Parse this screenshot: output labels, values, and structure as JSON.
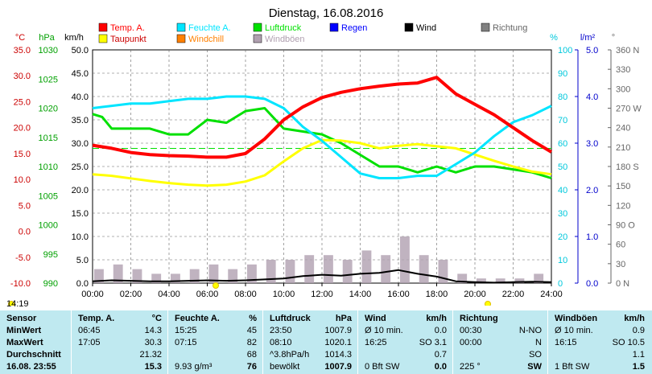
{
  "title": "Dienstag, 16.08.2016",
  "current_time": "14:19",
  "colors": {
    "temp": "#ff0000",
    "feuchte": "#00e5ff",
    "luftdruck": "#00e000",
    "taupunkt": "#ffff00",
    "windchill": "#ff8000",
    "windboeen": "#b0a0b0",
    "regen": "#0000ff",
    "wind": "#000000",
    "richtung": "#808080",
    "stats_bg": "#bfe9f0"
  },
  "legend": [
    {
      "key": "temp",
      "label": "Temp. A."
    },
    {
      "key": "feuchte",
      "label": "Feuchte A."
    },
    {
      "key": "luftdruck",
      "label": "Luftdruck"
    },
    {
      "key": "regen",
      "label": "Regen"
    },
    {
      "key": "wind",
      "label": "Wind"
    },
    {
      "key": "richtung",
      "label": "Richtung"
    },
    {
      "key": "taupunkt",
      "label": "Taupunkt"
    },
    {
      "key": "windchill",
      "label": "Windchill"
    },
    {
      "key": "windboeen",
      "label": "Windböen"
    }
  ],
  "chart_data": {
    "type": "line",
    "title": "Dienstag, 16.08.2016",
    "x_ticks": [
      "00:00",
      "02:00",
      "04:00",
      "06:00",
      "08:00",
      "10:00",
      "12:00",
      "14:00",
      "16:00",
      "18:00",
      "20:00",
      "22:00",
      "24:00"
    ],
    "axes": {
      "temp": {
        "unit": "°C",
        "ticks": [
          "35.0",
          "30.0",
          "25.0",
          "20.0",
          "15.0",
          "10.0",
          "5.0",
          "0.0",
          "-5.0",
          "-10.0"
        ],
        "range": [
          -10,
          35
        ]
      },
      "pressure": {
        "unit": "hPa",
        "ticks": [
          "1030",
          "1025",
          "1020",
          "1015",
          "1010",
          "1005",
          "1000",
          "995",
          "990"
        ],
        "range": [
          990,
          1030
        ]
      },
      "wind": {
        "unit": "km/h",
        "ticks": [
          "50.0",
          "45.0",
          "40.0",
          "35.0",
          "30.0",
          "25.0",
          "20.0",
          "15.0",
          "10.0",
          "5.0",
          "0.0"
        ],
        "range": [
          0,
          50
        ]
      },
      "humidity": {
        "unit": "%",
        "ticks": [
          "100",
          "90",
          "80",
          "70",
          "60",
          "50",
          "40",
          "30",
          "20",
          "10",
          "0"
        ],
        "range": [
          0,
          100
        ]
      },
      "rain": {
        "unit": "l/m²",
        "ticks": [
          "5.0",
          "4.0",
          "3.0",
          "2.0",
          "1.0",
          "0.0"
        ],
        "range": [
          0,
          5
        ]
      },
      "direction": {
        "unit": "°",
        "ticks": [
          "360 N",
          "330",
          "300",
          "270 W",
          "240",
          "210",
          "180 S",
          "150",
          "120",
          "90 O",
          "60",
          "30",
          "0 N"
        ],
        "range": [
          0,
          360
        ]
      }
    },
    "series": [
      {
        "name": "Temp. A.",
        "key": "temp",
        "axis": "temp",
        "x": [
          0,
          1,
          2,
          3,
          4,
          5,
          6,
          7,
          8,
          9,
          10,
          11,
          12,
          13,
          14,
          15,
          16,
          17,
          18,
          19,
          20,
          21,
          22,
          23,
          24
        ],
        "y": [
          16.6,
          16.0,
          15.2,
          14.8,
          14.6,
          14.5,
          14.3,
          14.3,
          15.0,
          17.8,
          21.5,
          24.0,
          25.8,
          26.8,
          27.5,
          28.0,
          28.4,
          28.6,
          29.7,
          26.5,
          24.5,
          22.5,
          20.0,
          17.5,
          15.3
        ]
      },
      {
        "name": "Taupunkt",
        "key": "taupunkt",
        "axis": "temp",
        "x": [
          0,
          1,
          2,
          3,
          4,
          5,
          6,
          7,
          8,
          9,
          10,
          11,
          12,
          13,
          14,
          15,
          16,
          17,
          18,
          19,
          20,
          21,
          22,
          23,
          24
        ],
        "y": [
          11.0,
          10.7,
          10.2,
          9.7,
          9.3,
          9.0,
          8.8,
          9.0,
          9.6,
          10.8,
          13.5,
          16.0,
          17.6,
          17.5,
          17.0,
          16.0,
          16.5,
          16.8,
          16.4,
          16.0,
          14.8,
          13.6,
          12.5,
          11.5,
          11.0
        ]
      },
      {
        "name": "Feuchte A.",
        "key": "feuchte",
        "axis": "humidity",
        "x": [
          0,
          1,
          2,
          3,
          4,
          5,
          6,
          7,
          8,
          9,
          10,
          11,
          12,
          13,
          14,
          15,
          16,
          17,
          18,
          19,
          20,
          21,
          22,
          23,
          24
        ],
        "y": [
          75,
          76,
          77,
          77,
          78,
          79,
          79,
          80,
          80,
          79,
          75,
          67,
          61,
          54,
          47,
          45,
          45,
          46,
          46,
          51,
          56,
          63,
          69,
          72,
          76
        ]
      },
      {
        "name": "Luftdruck",
        "key": "luftdruck",
        "axis": "pressure",
        "x": [
          0,
          0.5,
          1,
          2,
          3,
          4,
          5,
          6,
          7,
          8,
          9,
          10,
          11,
          12,
          13,
          14,
          15,
          16,
          17,
          18,
          19,
          20,
          21,
          22,
          23,
          24
        ],
        "y": [
          1019.0,
          1018.5,
          1016.5,
          1016.5,
          1016.5,
          1015.5,
          1015.5,
          1018.0,
          1017.5,
          1019.5,
          1020.0,
          1016.5,
          1016.0,
          1015.5,
          1014.0,
          1012.0,
          1010.0,
          1010.0,
          1009.0,
          1010.0,
          1009.0,
          1010.0,
          1010.0,
          1009.5,
          1009.0,
          1008.0
        ]
      },
      {
        "name": "Windböen",
        "key": "windboeen",
        "axis": "wind",
        "x": [
          0,
          1,
          2,
          3,
          4,
          5,
          6,
          7,
          8,
          9,
          10,
          11,
          12,
          13,
          14,
          15,
          16,
          17,
          18,
          19,
          20,
          21,
          22,
          23,
          24
        ],
        "y": [
          3,
          4,
          3,
          2,
          2,
          3,
          4,
          3,
          4,
          5,
          5,
          6,
          6,
          5,
          7,
          6,
          10,
          6,
          5,
          2,
          1,
          1,
          1,
          2,
          1
        ]
      },
      {
        "name": "Wind",
        "key": "wind",
        "axis": "wind",
        "x": [
          0,
          1,
          2,
          3,
          4,
          5,
          6,
          7,
          8,
          9,
          10,
          11,
          12,
          13,
          14,
          15,
          16,
          17,
          18,
          19,
          20,
          21,
          22,
          23,
          24
        ],
        "y": [
          0.4,
          0.6,
          0.5,
          0.4,
          0.4,
          0.5,
          0.6,
          0.5,
          0.6,
          0.8,
          1.0,
          1.5,
          1.8,
          1.6,
          2.0,
          2.2,
          2.8,
          2.0,
          1.4,
          0.4,
          0.2,
          0.1,
          0.2,
          0.3,
          0.2
        ]
      }
    ],
    "reference_lines": [
      {
        "axis": "temp",
        "y": 16.0,
        "key": "luftdruck",
        "style": "dashed"
      }
    ],
    "grid": true
  },
  "stats": {
    "headers": {
      "sensor": "Sensor",
      "temp": "Temp. A.",
      "temp_u": "°C",
      "feuchte": "Feuchte A.",
      "feuchte_u": "%",
      "druck": "Luftdruck",
      "druck_u": "hPa",
      "wind": "Wind",
      "wind_u": "km/h",
      "richtung": "Richtung",
      "boeen": "Windböen",
      "boeen_u": "km/h"
    },
    "rows": [
      {
        "label": "MinWert",
        "temp_t": "06:45",
        "temp_v": "14.3",
        "feuchte_t": "15:25",
        "feuchte_v": "45",
        "druck_t": "23:50",
        "druck_v": "1007.9",
        "wind_t": "Ø 10 min.",
        "wind_v": "0.0",
        "richtung_t": "00:30",
        "richtung_v": "N-NO",
        "boeen_t": "Ø 10 min.",
        "boeen_v": "0.9"
      },
      {
        "label": "MaxWert",
        "temp_t": "17:05",
        "temp_v": "30.3",
        "feuchte_t": "07:15",
        "feuchte_v": "82",
        "druck_t": "08:10",
        "druck_v": "1020.1",
        "wind_t": "16:25",
        "wind_v": "SO 3.1",
        "richtung_t": "00:00",
        "richtung_v": "N",
        "boeen_t": "16:15",
        "boeen_v": "SO 10.5"
      },
      {
        "label": "Durchschnitt",
        "temp_t": "",
        "temp_v": "21.32",
        "feuchte_t": "",
        "feuchte_v": "68",
        "druck_t": "^3.8hPa/h",
        "druck_v": "1014.3",
        "wind_t": "",
        "wind_v": "0.7",
        "richtung_t": "",
        "richtung_v": "SO",
        "boeen_t": "",
        "boeen_v": "1.1"
      },
      {
        "label": "16.08. 23:55",
        "temp_t": "",
        "temp_v": "15.3",
        "feuchte_t": "9.93 g/m³",
        "feuchte_v": "76",
        "druck_t": "bewölkt",
        "druck_v": "1007.9",
        "wind_t": "0 Bft SW",
        "wind_v": "0.0",
        "richtung_t": "225 °",
        "richtung_v": "SW",
        "boeen_t": "1 Bft SW",
        "boeen_v": "1.5"
      }
    ]
  }
}
